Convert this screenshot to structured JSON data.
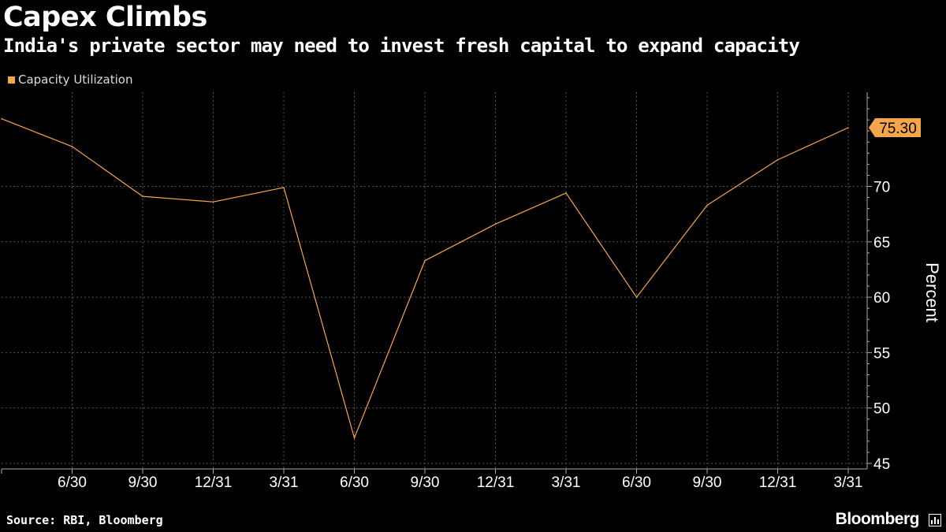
{
  "header": {
    "title": "Capex Climbs",
    "subtitle": "India's private sector may need to invest fresh capital to expand capacity"
  },
  "legend": {
    "label": "Capacity Utilization",
    "color": "#f5a54a"
  },
  "footer": {
    "source": "Source: RBI, Bloomberg",
    "brand": "Bloomberg"
  },
  "chart_data": {
    "type": "line",
    "title": "Capex Climbs",
    "subtitle": "India's private sector may need to invest fresh capital to expand capacity",
    "xlabel": "",
    "ylabel": "Percent",
    "ylim": [
      44.5,
      78.5
    ],
    "yticks": [
      45,
      50,
      55,
      60,
      65,
      70
    ],
    "grid": true,
    "legend_position": "top-left",
    "x_tick_labels": [
      "6/30",
      "9/30",
      "12/31",
      "3/31",
      "6/30",
      "9/30",
      "12/31",
      "3/31",
      "6/30",
      "9/30",
      "12/31",
      "3/31"
    ],
    "last_value_label": "75.30",
    "series": [
      {
        "name": "Capacity Utilization",
        "color": "#f5a54a",
        "x": [
          "3/31",
          "6/30",
          "9/30",
          "12/31",
          "3/31",
          "6/30",
          "9/30",
          "12/31",
          "3/31",
          "6/30",
          "9/30",
          "12/31",
          "3/31"
        ],
        "values": [
          76.1,
          73.6,
          69.1,
          68.6,
          69.9,
          47.3,
          63.3,
          66.6,
          69.4,
          60.0,
          68.3,
          72.4,
          75.3
        ]
      }
    ]
  }
}
